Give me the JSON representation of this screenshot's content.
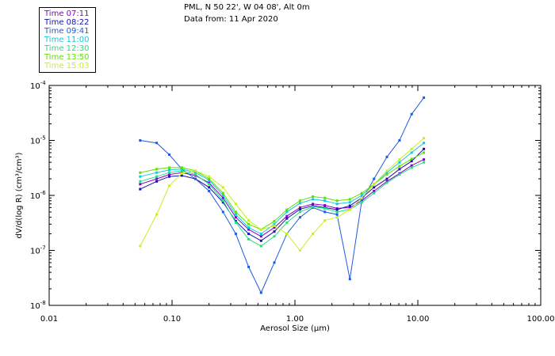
{
  "header": {
    "line1": "PML, N 50 22', W 04 08', Alt 0m",
    "line2": "Data from: 11 Apr 2020"
  },
  "legend": [
    {
      "label": "Time 07:11",
      "color": "#8a00c8"
    },
    {
      "label": "Time 08:22",
      "color": "#1a10b0"
    },
    {
      "label": "Time 09:41",
      "color": "#1e5ae0"
    },
    {
      "label": "Time 11:00",
      "color": "#10c8e0"
    },
    {
      "label": "Time 12:30",
      "color": "#20e080"
    },
    {
      "label": "Time 13:50",
      "color": "#60e000"
    },
    {
      "label": "Time 15:03",
      "color": "#c8f020"
    }
  ],
  "chart_data": {
    "type": "line",
    "xscale": "log",
    "yscale": "log",
    "xlim": [
      0.01,
      100
    ],
    "ylim": [
      1e-08,
      0.0001
    ],
    "xlabel": "Aerosol Size (μm)",
    "ylabel": "dV/d(log R) (cm³/cm³)",
    "x_ticks": [
      {
        "value": 0.01,
        "label": "0.01"
      },
      {
        "value": 0.1,
        "label": "0.10"
      },
      {
        "value": 1,
        "label": "1.00"
      },
      {
        "value": 10,
        "label": "10.00"
      },
      {
        "value": 100,
        "label": "100.00"
      }
    ],
    "y_ticks": [
      {
        "value": 1e-08,
        "base": "10",
        "exp": "-8"
      },
      {
        "value": 1e-07,
        "base": "10",
        "exp": "-7"
      },
      {
        "value": 1e-06,
        "base": "10",
        "exp": "-6"
      },
      {
        "value": 1e-05,
        "base": "10",
        "exp": "-5"
      },
      {
        "value": 0.0001,
        "base": "10",
        "exp": "-4"
      }
    ],
    "x": [
      0.055,
      0.075,
      0.095,
      0.12,
      0.155,
      0.2,
      0.26,
      0.33,
      0.42,
      0.53,
      0.68,
      0.86,
      1.1,
      1.4,
      1.75,
      2.2,
      2.8,
      3.5,
      4.4,
      5.6,
      7.1,
      8.9,
      11.2
    ],
    "series": [
      {
        "name": "Time 07:11",
        "color": "#8a00c8",
        "values": [
          1.6e-06,
          2e-06,
          2.4e-06,
          2.6e-06,
          2.3e-06,
          1.7e-06,
          9e-07,
          4e-07,
          2.4e-07,
          1.8e-07,
          2.6e-07,
          4.2e-07,
          6e-07,
          7e-07,
          6.6e-07,
          5.8e-07,
          6e-07,
          8e-07,
          1.2e-06,
          1.8e-06,
          2.5e-06,
          3.5e-06,
          4.5e-06
        ]
      },
      {
        "name": "Time 08:22",
        "color": "#1a10b0",
        "values": [
          1.3e-06,
          1.8e-06,
          2.2e-06,
          2.3e-06,
          2e-06,
          1.4e-06,
          7.5e-07,
          3.4e-07,
          2e-07,
          1.5e-07,
          2.2e-07,
          3.8e-07,
          5.6e-07,
          6.5e-07,
          6e-07,
          5.5e-07,
          6.5e-07,
          9e-07,
          1.4e-06,
          2e-06,
          3e-06,
          4.2e-06,
          7e-06
        ]
      },
      {
        "name": "Time 09:41",
        "color": "#1e5ae0",
        "values": [
          1e-05,
          9e-06,
          5.5e-06,
          3e-06,
          2e-06,
          1.2e-06,
          5e-07,
          2e-07,
          5e-08,
          1.7e-08,
          6e-08,
          2e-07,
          4e-07,
          6e-07,
          5e-07,
          4.5e-07,
          3e-08,
          8e-07,
          2e-06,
          5e-06,
          1e-05,
          3e-05,
          6e-05
        ]
      },
      {
        "name": "Time 11:00",
        "color": "#10c8e0",
        "values": [
          2.2e-06,
          2.6e-06,
          2.9e-06,
          3e-06,
          2.6e-06,
          1.9e-06,
          1e-06,
          4.5e-07,
          2.6e-07,
          2e-07,
          3e-07,
          5e-07,
          7.2e-07,
          8.5e-07,
          8e-07,
          7e-07,
          7.5e-07,
          1e-06,
          1.6e-06,
          2.6e-06,
          4e-06,
          6e-06,
          9e-06
        ]
      },
      {
        "name": "Time 12:30",
        "color": "#20e080",
        "values": [
          1.8e-06,
          2.2e-06,
          2.6e-06,
          2.8e-06,
          2.4e-06,
          1.6e-06,
          8e-07,
          3.2e-07,
          1.6e-07,
          1.2e-07,
          1.8e-07,
          3.2e-07,
          5e-07,
          6.2e-07,
          5.8e-07,
          5e-07,
          5.6e-07,
          7.5e-07,
          1.1e-06,
          1.7e-06,
          2.4e-06,
          3.2e-06,
          4e-06
        ]
      },
      {
        "name": "Time 13:50",
        "color": "#60e000",
        "values": [
          2.6e-06,
          3e-06,
          3.2e-06,
          3.2e-06,
          2.8e-06,
          2e-06,
          1.1e-06,
          5e-07,
          3e-07,
          2.4e-07,
          3.4e-07,
          5.5e-07,
          8e-07,
          9.5e-07,
          9e-07,
          8e-07,
          8.5e-07,
          1.1e-06,
          1.6e-06,
          2.4e-06,
          3.4e-06,
          4.6e-06,
          6e-06
        ]
      },
      {
        "name": "Time 15:03",
        "color": "#c8f020",
        "values": [
          1.2e-07,
          4.5e-07,
          1.5e-06,
          2.5e-06,
          2.8e-06,
          2.2e-06,
          1.4e-06,
          7e-07,
          3.5e-07,
          2.4e-07,
          2.8e-07,
          2e-07,
          1e-07,
          2e-07,
          3.5e-07,
          4e-07,
          5.5e-07,
          9e-07,
          1.6e-06,
          2.8e-06,
          4.5e-06,
          7e-06,
          1.1e-05
        ]
      }
    ]
  }
}
